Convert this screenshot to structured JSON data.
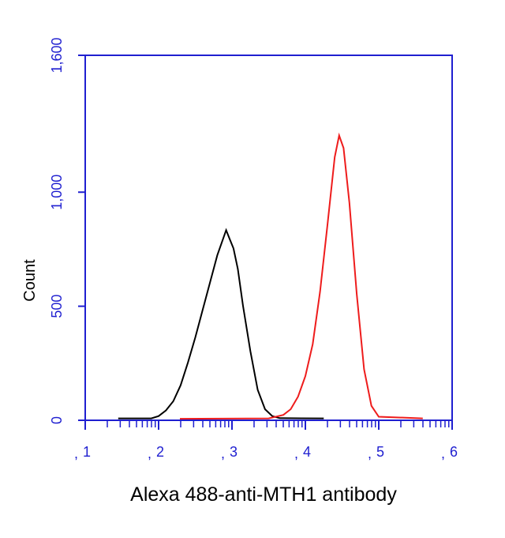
{
  "chart_data": {
    "type": "line",
    "title": "",
    "xlabel": "Alexa 488-anti-MTH1 antibody",
    "ylabel": "Count",
    "x_scale": "log10",
    "xlim_log10": [
      1,
      6
    ],
    "x_tick_labels": [
      "1",
      "2",
      "3",
      "4",
      "5",
      "6"
    ],
    "ylim": [
      0,
      1600
    ],
    "y_ticks": [
      0,
      500,
      1000,
      1600
    ],
    "y_tick_labels": [
      "0",
      "500",
      "1,000",
      "1,600"
    ],
    "grid": false,
    "axis_color": "#1f1fd0",
    "series": [
      {
        "color": "#000000",
        "points_log10x_count": [
          [
            1.45,
            5
          ],
          [
            1.9,
            5
          ],
          [
            2.0,
            15
          ],
          [
            2.1,
            40
          ],
          [
            2.2,
            80
          ],
          [
            2.3,
            150
          ],
          [
            2.4,
            250
          ],
          [
            2.5,
            360
          ],
          [
            2.6,
            480
          ],
          [
            2.7,
            600
          ],
          [
            2.8,
            720
          ],
          [
            2.92,
            830
          ],
          [
            2.97,
            790
          ],
          [
            3.02,
            750
          ],
          [
            3.08,
            660
          ],
          [
            3.15,
            500
          ],
          [
            3.25,
            300
          ],
          [
            3.35,
            130
          ],
          [
            3.45,
            45
          ],
          [
            3.55,
            15
          ],
          [
            3.65,
            6
          ],
          [
            4.25,
            5
          ]
        ]
      },
      {
        "color": "#ee1c1c",
        "points_log10x_count": [
          [
            2.29,
            3
          ],
          [
            3.5,
            5
          ],
          [
            3.7,
            20
          ],
          [
            3.8,
            45
          ],
          [
            3.9,
            100
          ],
          [
            4.0,
            190
          ],
          [
            4.1,
            330
          ],
          [
            4.2,
            560
          ],
          [
            4.3,
            850
          ],
          [
            4.4,
            1150
          ],
          [
            4.46,
            1245
          ],
          [
            4.52,
            1190
          ],
          [
            4.6,
            950
          ],
          [
            4.7,
            550
          ],
          [
            4.8,
            220
          ],
          [
            4.9,
            60
          ],
          [
            5.0,
            12
          ],
          [
            5.6,
            5
          ]
        ]
      }
    ]
  }
}
